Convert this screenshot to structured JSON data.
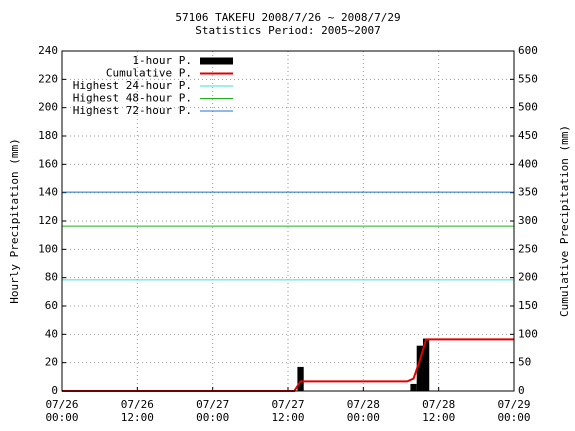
{
  "chart_data": {
    "type": "bar",
    "title": "57106 TAKEFU  2008/7/26 ~ 2008/7/29",
    "subtitle": "Statistics Period: 2005~2007",
    "ylabel": "Hourly Precipitation (mm)",
    "y2label": "Cumulative Precipitation (mm)",
    "xlim": [
      0,
      72
    ],
    "xticks": [
      {
        "value": 0,
        "label": "07/26 00:00"
      },
      {
        "value": 12,
        "label": "07/26 12:00"
      },
      {
        "value": 24,
        "label": "07/27 00:00"
      },
      {
        "value": 36,
        "label": "07/27 12:00"
      },
      {
        "value": 48,
        "label": "07/28 00:00"
      },
      {
        "value": 60,
        "label": "07/28 12:00"
      },
      {
        "value": 72,
        "label": "07/29 00:00"
      }
    ],
    "ylim": [
      0,
      240
    ],
    "yticks": [
      0,
      20,
      40,
      60,
      80,
      100,
      120,
      140,
      160,
      180,
      200,
      220,
      240
    ],
    "y2lim": [
      0,
      600
    ],
    "y2ticks": [
      0,
      50,
      100,
      150,
      200,
      250,
      300,
      350,
      400,
      450,
      500,
      550,
      600
    ],
    "grid": true,
    "legend": "upper left",
    "series": [
      {
        "name": "1-hour P.",
        "type": "bar",
        "color": "#000000",
        "x": [
          38,
          56,
          57,
          58
        ],
        "values": [
          17,
          5,
          32,
          37
        ]
      },
      {
        "name": "Cumulative P.",
        "type": "line",
        "axis": "y2",
        "color": "#e00000",
        "x": [
          0,
          37,
          38,
          55,
          56,
          57,
          58,
          72
        ],
        "values": [
          0,
          0,
          17,
          17,
          22,
          54,
          91,
          91
        ]
      },
      {
        "name": "Highest 24-hour P.",
        "type": "hline",
        "axis": "y2",
        "color": "#40e0d0",
        "values": [
          196
        ]
      },
      {
        "name": "Highest 48-hour P.",
        "type": "hline",
        "axis": "y2",
        "color": "#20b020",
        "values": [
          291
        ]
      },
      {
        "name": "Highest 72-hour P.",
        "type": "hline",
        "axis": "y2",
        "color": "#2070d0",
        "values": [
          351
        ]
      }
    ]
  }
}
